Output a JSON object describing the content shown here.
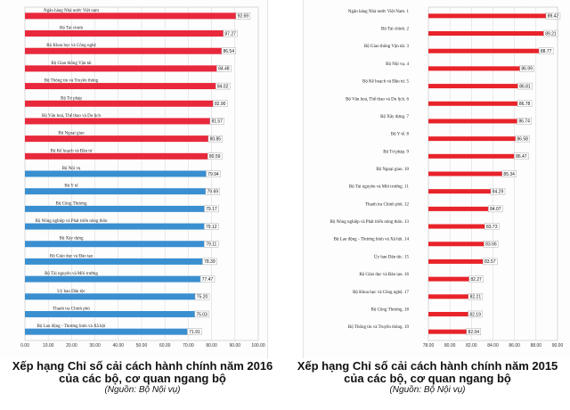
{
  "chart_data": [
    {
      "type": "bar",
      "orientation": "horizontal",
      "categories": [
        "Ngân hàng Nhà nước Việt nam",
        "Bộ Tài chính",
        "Bộ Khoa học và Công nghệ",
        "Bộ Giao thông Vận tải",
        "Bộ Thông tin và Truyền thông",
        "Bộ Tư pháp",
        "Bộ Văn hoá, Thể thao và Du lịch",
        "Bộ Ngoại giao",
        "Bộ Kế hoạch và Đầu tư",
        "Bộ Nội vụ",
        "Bộ Y tế",
        "Bộ Công Thương",
        "Bộ Nông nghiệp và Phát triển nông thôn",
        "Bộ Xây dựng",
        "Bộ Giáo dục và Đào tạo",
        "Bộ Tài nguyên và Môi trường",
        "Uỷ ban Dân tộc",
        "Thanh tra Chính phủ",
        "Bộ Lao động - Thương binh và Xã hội"
      ],
      "values": [
        92.69,
        87.27,
        86.54,
        84.48,
        84.02,
        82.9,
        81.57,
        80.85,
        80.59,
        79.94,
        79.69,
        79.17,
        79.12,
        79.11,
        78.39,
        77.47,
        75.2,
        75.03,
        71.91
      ],
      "value_labels": [
        "92.69",
        "87.27",
        "86.54",
        "84.48",
        "84.02",
        "82.90",
        "81.57",
        "80.85",
        "80.59",
        "79.94",
        "79.69",
        "79.17",
        "79.12",
        "79.11",
        "78.39",
        "77.47",
        "75.20",
        "75.03",
        "71.91"
      ],
      "colors": [
        "#e8283c",
        "#e8283c",
        "#e8283c",
        "#e8283c",
        "#e8283c",
        "#e8283c",
        "#e8283c",
        "#e8283c",
        "#e8283c",
        "#3a8fd0",
        "#3a8fd0",
        "#3a8fd0",
        "#3a8fd0",
        "#3a8fd0",
        "#3a8fd0",
        "#3a8fd0",
        "#3a8fd0",
        "#3a8fd0",
        "#3a8fd0"
      ],
      "xlim": [
        0,
        100
      ],
      "ticks": [
        "0.00",
        "10.00",
        "20.00",
        "30.00",
        "40.00",
        "50.00",
        "60.00",
        "70.00",
        "80.00",
        "90.00",
        "100.00"
      ],
      "grid": true,
      "title": "Xếp hạng Chỉ số cải cách hành chính năm 2016",
      "subtitle": "của các bộ, cơ quan ngang bộ",
      "source": "(Nguồn: Bộ Nội vụ)"
    },
    {
      "type": "bar",
      "orientation": "horizontal",
      "categories": [
        "Ngân hàng Nhà nước Việt Nam. 1",
        "Bộ Tài chính. 2",
        "Bộ Giao thông Vận tải. 3",
        "Bộ Nội vụ. 4",
        "Bộ Kế hoạch và Đầu tư. 5",
        "Bộ Văn hoá, Thể thao và Du lịch. 6",
        "Bộ Xây dựng. 7",
        "Bộ Y tế. 8",
        "Bộ Tư pháp. 9",
        "Bộ Ngoại giao. 10",
        "Bộ Tài nguyên và Môi trường. 11",
        "Thanh tra Chính phủ. 12",
        "Bộ Nông nghiệp và Phát triển nông thôn. 13",
        "Bộ Lao động - Thương binh và Xã hội. 14",
        "Ủy ban Dân tộc. 15",
        "Bộ Giáo dục và Đào tạo. 16",
        "Bộ Khoa học và Công nghệ. 17",
        "Bộ Công Thương. 18",
        "Bộ Thông tin và Truyền thông. 19"
      ],
      "values": [
        89.42,
        89.21,
        88.77,
        86.99,
        86.81,
        86.78,
        86.74,
        86.58,
        86.47,
        85.34,
        84.29,
        84.07,
        83.73,
        83.66,
        83.57,
        82.27,
        82.21,
        82.19,
        82.04
      ],
      "value_labels": [
        "89.42",
        "89.21",
        "88.77",
        "86.99",
        "86.81",
        "86.78",
        "86.74",
        "86.58",
        "86.47",
        "85.34",
        "84.29",
        "84.07",
        "83.73",
        "83.66",
        "83.57",
        "82.27",
        "82.21",
        "82.19",
        "82.04"
      ],
      "colors": [
        "#e8232a"
      ],
      "xlim": [
        78,
        90
      ],
      "ticks": [
        "78.00",
        "80.00",
        "82.00",
        "84.00",
        "86.00",
        "88.00",
        "90.00"
      ],
      "grid": true,
      "title": "Xếp hạng Chỉ số cải cách hành chính năm 2015",
      "subtitle": "của các bộ, cơ quan ngang bộ",
      "source": "(Nguồn: Bộ Nội vụ)"
    }
  ]
}
